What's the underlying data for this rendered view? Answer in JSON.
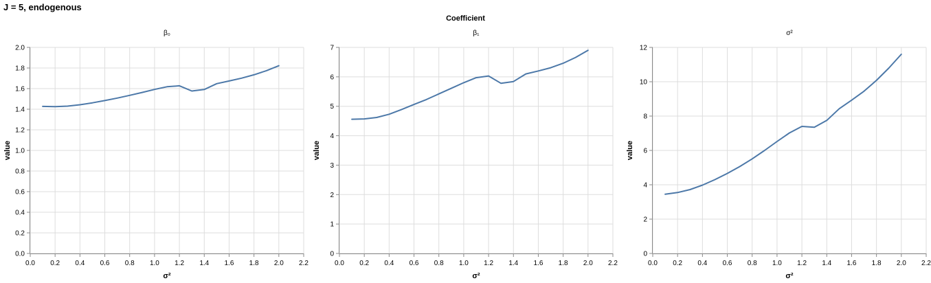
{
  "page": {
    "title": "J = 5, endogenous",
    "facet_header": "Coefficient"
  },
  "colors": {
    "line": "#4c78a8",
    "grid": "#dddddd",
    "axis": "#888888",
    "text": "#000000"
  },
  "chart_data": [
    {
      "type": "line",
      "title": "β₀",
      "xlabel": "σ²",
      "ylabel": "value",
      "xlim": [
        0,
        2.2
      ],
      "ylim": [
        0,
        2.0
      ],
      "xticks": [
        0.0,
        0.2,
        0.4,
        0.6,
        0.8,
        1.0,
        1.2,
        1.4,
        1.6,
        1.8,
        2.0,
        2.2
      ],
      "yticks": [
        0.0,
        0.2,
        0.4,
        0.6,
        0.8,
        1.0,
        1.2,
        1.4,
        1.6,
        1.8,
        2.0
      ],
      "ytick_decimals": 1,
      "grid": true,
      "x": [
        0.1,
        0.2,
        0.3,
        0.4,
        0.5,
        0.6,
        0.7,
        0.8,
        0.9,
        1.0,
        1.1,
        1.2,
        1.3,
        1.4,
        1.5,
        1.6,
        1.7,
        1.8,
        1.9,
        2.0
      ],
      "y": [
        1.427,
        1.425,
        1.43,
        1.443,
        1.462,
        1.484,
        1.508,
        1.535,
        1.563,
        1.592,
        1.618,
        1.627,
        1.577,
        1.591,
        1.648,
        1.674,
        1.701,
        1.734,
        1.774,
        1.822
      ]
    },
    {
      "type": "line",
      "title": "β₁",
      "xlabel": "σ²",
      "ylabel": "value",
      "xlim": [
        0,
        2.2
      ],
      "ylim": [
        0,
        7
      ],
      "xticks": [
        0.0,
        0.2,
        0.4,
        0.6,
        0.8,
        1.0,
        1.2,
        1.4,
        1.6,
        1.8,
        2.0,
        2.2
      ],
      "yticks": [
        0,
        1,
        2,
        3,
        4,
        5,
        6,
        7
      ],
      "ytick_decimals": 0,
      "grid": true,
      "x": [
        0.1,
        0.2,
        0.3,
        0.4,
        0.5,
        0.6,
        0.7,
        0.8,
        0.9,
        1.0,
        1.1,
        1.2,
        1.3,
        1.4,
        1.5,
        1.6,
        1.7,
        1.8,
        1.9,
        2.0
      ],
      "y": [
        4.56,
        4.57,
        4.62,
        4.73,
        4.89,
        5.06,
        5.23,
        5.42,
        5.61,
        5.8,
        5.97,
        6.03,
        5.78,
        5.84,
        6.1,
        6.2,
        6.31,
        6.46,
        6.66,
        6.9
      ]
    },
    {
      "type": "line",
      "title": "σ²",
      "xlabel": "σ²",
      "ylabel": "value",
      "xlim": [
        0,
        2.2
      ],
      "ylim": [
        0,
        12
      ],
      "xticks": [
        0.0,
        0.2,
        0.4,
        0.6,
        0.8,
        1.0,
        1.2,
        1.4,
        1.6,
        1.8,
        2.0,
        2.2
      ],
      "yticks": [
        0,
        2,
        4,
        6,
        8,
        10,
        12
      ],
      "ytick_decimals": 0,
      "grid": true,
      "x": [
        0.1,
        0.2,
        0.3,
        0.4,
        0.5,
        0.6,
        0.7,
        0.8,
        0.9,
        1.0,
        1.1,
        1.2,
        1.3,
        1.4,
        1.5,
        1.6,
        1.7,
        1.8,
        1.9,
        2.0
      ],
      "y": [
        3.45,
        3.55,
        3.72,
        3.98,
        4.3,
        4.66,
        5.06,
        5.51,
        6.0,
        6.52,
        7.02,
        7.4,
        7.35,
        7.75,
        8.43,
        8.93,
        9.45,
        10.08,
        10.8,
        11.6
      ]
    }
  ]
}
